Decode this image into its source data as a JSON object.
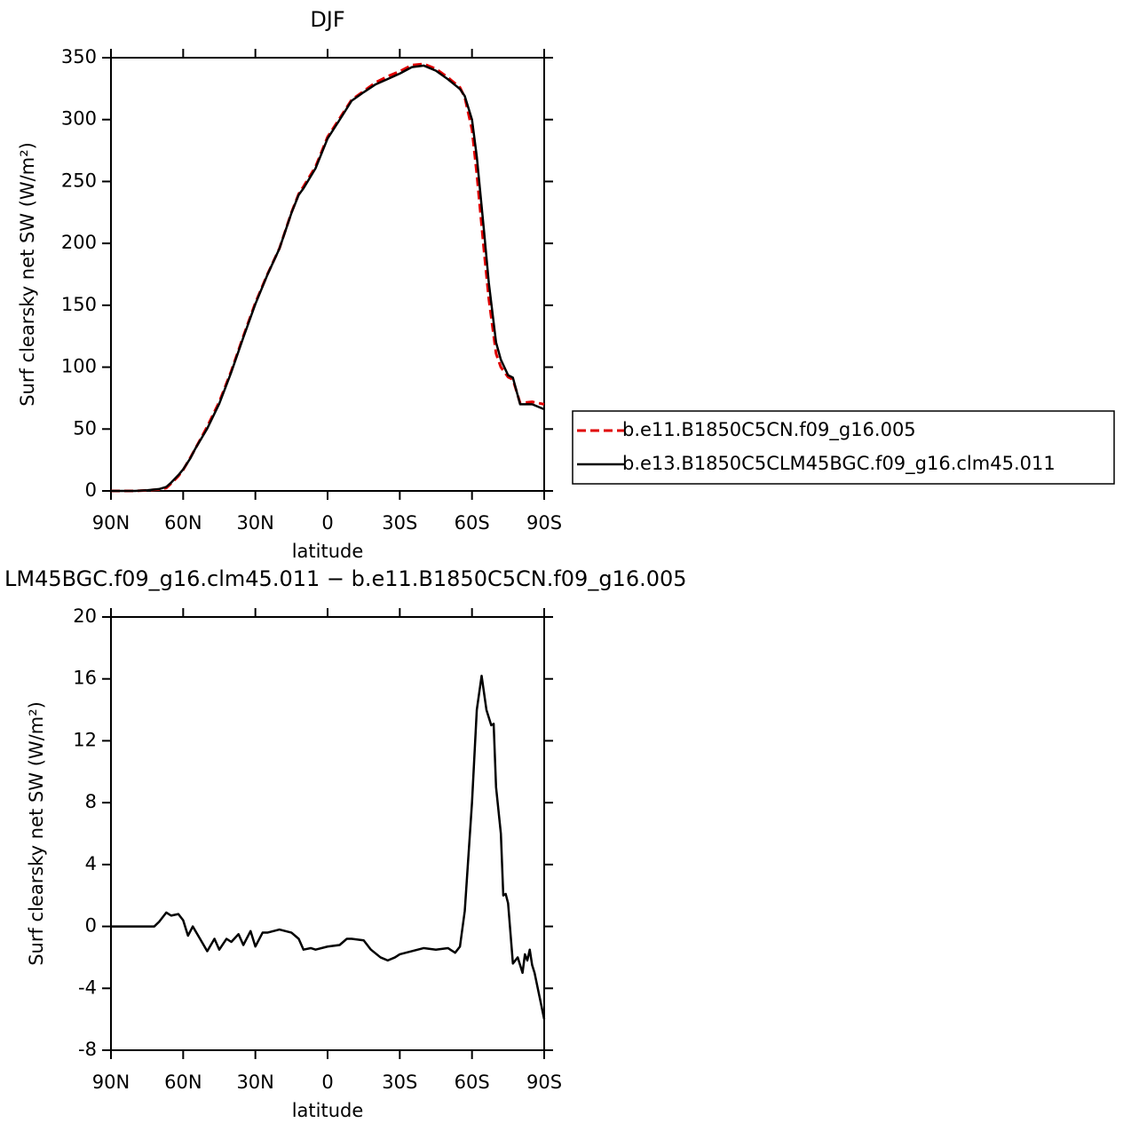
{
  "chart_data": [
    {
      "type": "line",
      "title": "DJF",
      "ylabel": "Surf clearsky net SW (W/m²)",
      "xlabel": "latitude",
      "x": [
        90,
        85,
        80,
        75,
        70,
        67,
        65,
        62,
        60,
        57,
        55,
        50,
        45,
        40,
        35,
        30,
        25,
        20,
        15,
        12,
        10,
        5,
        0,
        -5,
        -10,
        -15,
        -20,
        -25,
        -30,
        -35,
        -40,
        -45,
        -50,
        -55,
        -57,
        -60,
        -62,
        -65,
        -67,
        -70,
        -72,
        -75,
        -77,
        -80,
        -85,
        -90
      ],
      "series": [
        {
          "name": "b.e11.B1850C5CN.f09_g16.005",
          "color": "#e00000",
          "dash": true,
          "values": [
            0,
            0,
            0,
            0.5,
            1.2,
            2.4,
            6,
            12,
            17,
            27,
            34,
            52,
            72,
            97,
            125,
            152,
            175,
            196,
            225,
            240,
            246,
            262,
            286,
            301,
            316,
            323,
            330,
            335,
            339,
            344,
            345,
            341,
            334,
            326,
            318,
            292,
            256,
            194,
            155,
            111,
            100,
            92,
            90,
            71,
            72,
            70
          ]
        },
        {
          "name": "b.e13.B1850C5CLM45BGC.f09_g16.clm45.011",
          "color": "#000000",
          "dash": false,
          "values": [
            0,
            0,
            0,
            0.5,
            1.5,
            3.3,
            6.7,
            12.8,
            17.4,
            26.4,
            34,
            50.4,
            70.5,
            96,
            124,
            151,
            174.6,
            195.8,
            224.6,
            239.2,
            244.5,
            260.6,
            284.7,
            299.8,
            315.2,
            322.1,
            328.5,
            332.8,
            337.2,
            342.4,
            343.6,
            339.5,
            332.6,
            324.7,
            319,
            300,
            270,
            210,
            168,
            120,
            106,
            93.5,
            91.5,
            70,
            70,
            66
          ]
        }
      ],
      "xlim": [
        90,
        -90
      ],
      "xticks": [
        {
          "value": 90,
          "label": "90N"
        },
        {
          "value": 60,
          "label": "60N"
        },
        {
          "value": 30,
          "label": "30N"
        },
        0,
        {
          "value": -30,
          "label": "30S"
        },
        {
          "value": -60,
          "label": "60S"
        },
        {
          "value": -90,
          "label": "90S"
        }
      ],
      "ylim": [
        0,
        350
      ],
      "yticks": [
        0,
        50,
        100,
        150,
        200,
        250,
        300,
        350
      ],
      "legend": "right"
    },
    {
      "type": "line",
      "title": "LM45BGC.f09_g16.clm45.011 − b.e11.B1850C5CN.f09_g16.005",
      "ylabel": "Surf clearsky net SW (W/m²)",
      "xlabel": "latitude",
      "x": [
        90,
        80,
        72,
        70,
        67,
        65,
        62,
        60,
        58,
        56,
        53,
        50,
        47,
        45,
        42,
        40,
        37,
        35,
        32,
        30,
        27,
        25,
        20,
        15,
        12,
        10,
        7,
        5,
        0,
        -5,
        -8,
        -10,
        -15,
        -18,
        -22,
        -25,
        -28,
        -30,
        -35,
        -40,
        -45,
        -50,
        -53,
        -55,
        -57,
        -60,
        -62,
        -64,
        -66,
        -68,
        -69,
        -70,
        -72,
        -73,
        -74,
        -75,
        -77,
        -79,
        -81,
        -82,
        -83,
        -84,
        -85,
        -86,
        -88,
        -90
      ],
      "series": [
        {
          "color": "#000000",
          "dash": false,
          "values": [
            0,
            0,
            0,
            0.3,
            0.9,
            0.7,
            0.8,
            0.4,
            -0.6,
            0,
            -0.8,
            -1.6,
            -0.8,
            -1.5,
            -0.8,
            -1.0,
            -0.5,
            -1.2,
            -0.3,
            -1.3,
            -0.4,
            -0.4,
            -0.2,
            -0.4,
            -0.8,
            -1.5,
            -1.4,
            -1.5,
            -1.3,
            -1.2,
            -0.8,
            -0.8,
            -0.9,
            -1.5,
            -2.0,
            -2.2,
            -2.0,
            -1.8,
            -1.6,
            -1.4,
            -1.5,
            -1.4,
            -1.7,
            -1.3,
            1,
            8,
            14,
            16.2,
            14,
            13,
            13.1,
            9,
            6,
            2,
            2.1,
            1.5,
            -2.4,
            -2,
            -3,
            -1.8,
            -2.2,
            -1.5,
            -2.5,
            -3,
            -4.5,
            -6
          ]
        }
      ],
      "xlim": [
        90,
        -90
      ],
      "xticks": [
        {
          "value": 90,
          "label": "90N"
        },
        {
          "value": 60,
          "label": "60N"
        },
        {
          "value": 30,
          "label": "30N"
        },
        0,
        {
          "value": -30,
          "label": "30S"
        },
        {
          "value": -60,
          "label": "60S"
        },
        {
          "value": -90,
          "label": "90S"
        }
      ],
      "ylim": [
        -8,
        20
      ],
      "yticks": [
        -8,
        -4,
        0,
        4,
        8,
        12,
        16,
        20
      ]
    }
  ]
}
